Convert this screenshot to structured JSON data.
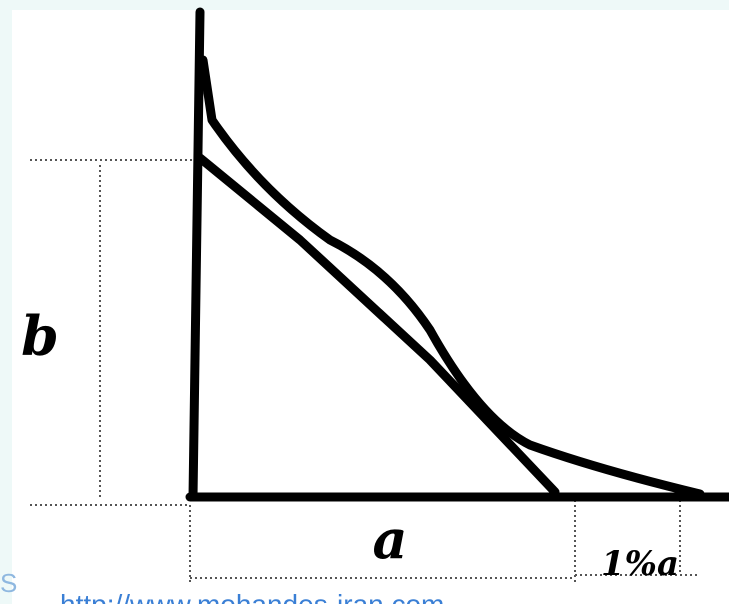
{
  "diagram": {
    "labels": {
      "height": "b",
      "base": "a",
      "tail": "1%a"
    },
    "watermark_prefix": "S",
    "watermark": "http://www.mohandes-iran.com"
  }
}
